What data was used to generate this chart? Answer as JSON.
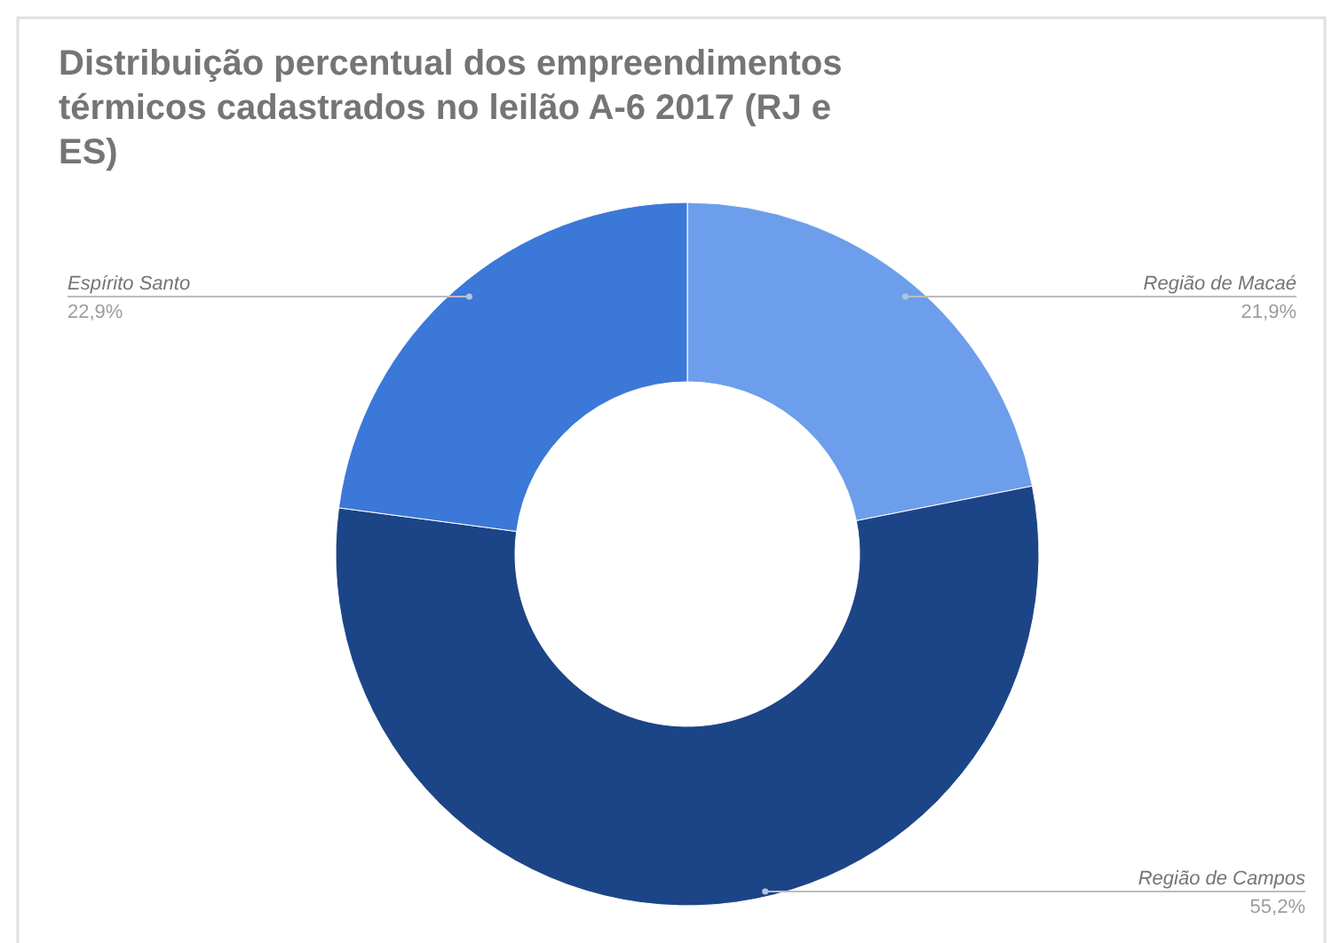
{
  "chart_data": {
    "type": "donut",
    "title": "Distribuição percentual dos empreendimentos térmicos cadastrados no leilão A-6 2017 (RJ e ES)",
    "categories": [
      "Região de Macaé",
      "Região de Campos",
      "Espírito Santo"
    ],
    "values": [
      21.9,
      55.2,
      22.9
    ],
    "value_labels": [
      "21,9%",
      "55,2%",
      "22,9%"
    ],
    "colors": [
      "#6d9eeb",
      "#1c4587",
      "#3c78d8"
    ]
  }
}
